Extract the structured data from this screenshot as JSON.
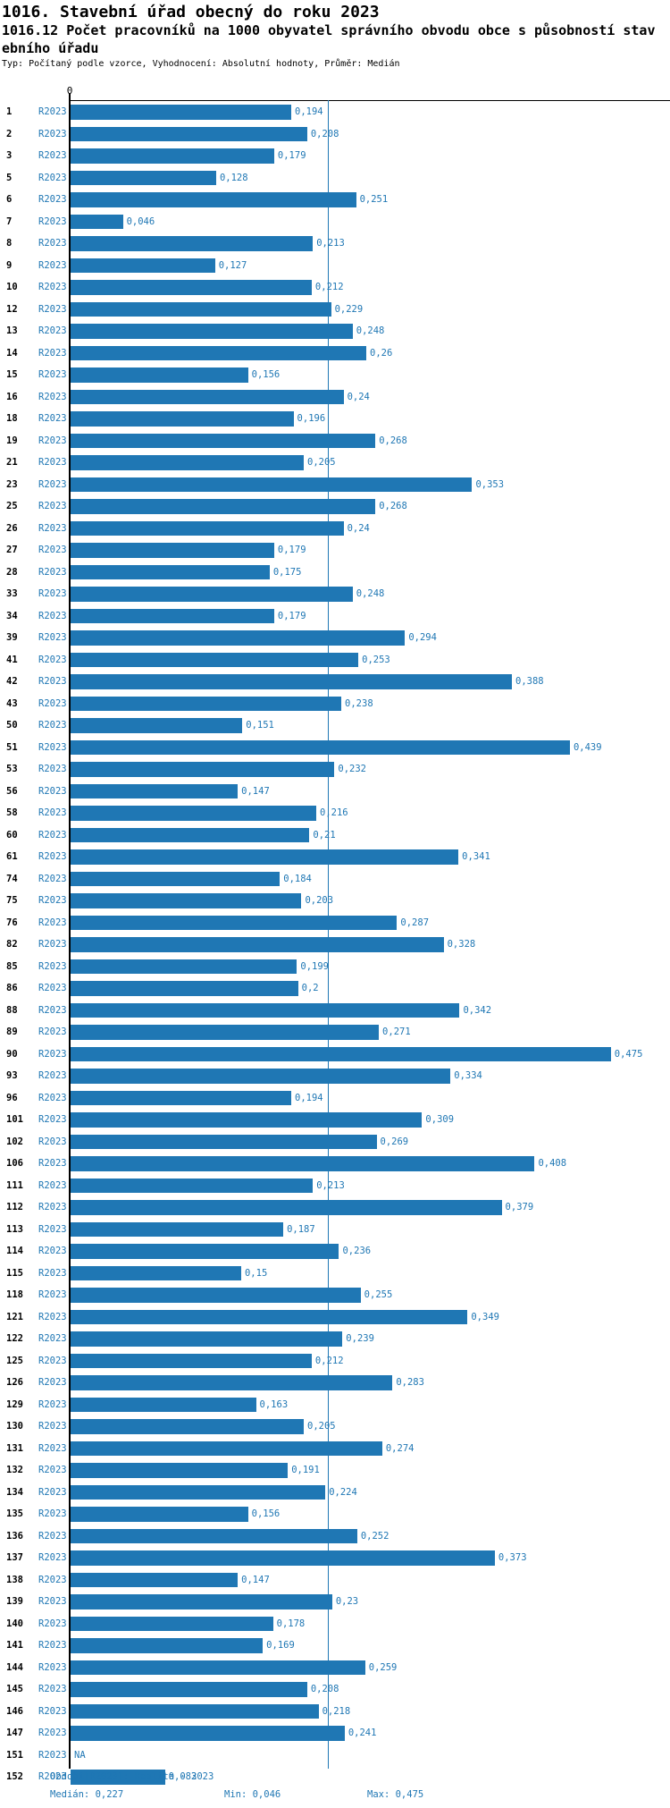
{
  "header": {
    "title": "1016. Stavební úřad obecný do roku 2023",
    "subtitle_line1": "1016.12 Počet pracovníků na 1000 obyvatel správního obvodu obce s působností stav",
    "subtitle_line2": "ebního úřadu",
    "meta": "Typ: Počítaný podle vzorce, Vyhodnocení: Absolutní hodnoty, Průměr: Medián"
  },
  "chart_data": {
    "type": "bar",
    "orientation": "horizontal",
    "series_label": "R2023",
    "axis": {
      "zero_label": "0",
      "max": 0.527,
      "median_value": 0.227,
      "grid": false
    },
    "colors": {
      "bar": "#1f77b4",
      "median_line": "#1f77b4",
      "axis": "#000000"
    },
    "rows": [
      {
        "id": "1",
        "value": 0.194,
        "label": "0,194"
      },
      {
        "id": "2",
        "value": 0.208,
        "label": "0,208"
      },
      {
        "id": "3",
        "value": 0.179,
        "label": "0,179"
      },
      {
        "id": "5",
        "value": 0.128,
        "label": "0,128"
      },
      {
        "id": "6",
        "value": 0.251,
        "label": "0,251"
      },
      {
        "id": "7",
        "value": 0.046,
        "label": "0,046"
      },
      {
        "id": "8",
        "value": 0.213,
        "label": "0,213"
      },
      {
        "id": "9",
        "value": 0.127,
        "label": "0,127"
      },
      {
        "id": "10",
        "value": 0.212,
        "label": "0,212"
      },
      {
        "id": "12",
        "value": 0.229,
        "label": "0,229"
      },
      {
        "id": "13",
        "value": 0.248,
        "label": "0,248"
      },
      {
        "id": "14",
        "value": 0.26,
        "label": "0,26"
      },
      {
        "id": "15",
        "value": 0.156,
        "label": "0,156"
      },
      {
        "id": "16",
        "value": 0.24,
        "label": "0,24"
      },
      {
        "id": "18",
        "value": 0.196,
        "label": "0,196"
      },
      {
        "id": "19",
        "value": 0.268,
        "label": "0,268"
      },
      {
        "id": "21",
        "value": 0.205,
        "label": "0,205"
      },
      {
        "id": "23",
        "value": 0.353,
        "label": "0,353"
      },
      {
        "id": "25",
        "value": 0.268,
        "label": "0,268"
      },
      {
        "id": "26",
        "value": 0.24,
        "label": "0,24"
      },
      {
        "id": "27",
        "value": 0.179,
        "label": "0,179"
      },
      {
        "id": "28",
        "value": 0.175,
        "label": "0,175"
      },
      {
        "id": "33",
        "value": 0.248,
        "label": "0,248"
      },
      {
        "id": "34",
        "value": 0.179,
        "label": "0,179"
      },
      {
        "id": "39",
        "value": 0.294,
        "label": "0,294"
      },
      {
        "id": "41",
        "value": 0.253,
        "label": "0,253"
      },
      {
        "id": "42",
        "value": 0.388,
        "label": "0,388"
      },
      {
        "id": "43",
        "value": 0.238,
        "label": "0,238"
      },
      {
        "id": "50",
        "value": 0.151,
        "label": "0,151"
      },
      {
        "id": "51",
        "value": 0.439,
        "label": "0,439"
      },
      {
        "id": "53",
        "value": 0.232,
        "label": "0,232"
      },
      {
        "id": "56",
        "value": 0.147,
        "label": "0,147"
      },
      {
        "id": "58",
        "value": 0.216,
        "label": "0,216"
      },
      {
        "id": "60",
        "value": 0.21,
        "label": "0,21"
      },
      {
        "id": "61",
        "value": 0.341,
        "label": "0,341"
      },
      {
        "id": "74",
        "value": 0.184,
        "label": "0,184"
      },
      {
        "id": "75",
        "value": 0.203,
        "label": "0,203"
      },
      {
        "id": "76",
        "value": 0.287,
        "label": "0,287"
      },
      {
        "id": "82",
        "value": 0.328,
        "label": "0,328"
      },
      {
        "id": "85",
        "value": 0.199,
        "label": "0,199"
      },
      {
        "id": "86",
        "value": 0.2,
        "label": "0,2"
      },
      {
        "id": "88",
        "value": 0.342,
        "label": "0,342"
      },
      {
        "id": "89",
        "value": 0.271,
        "label": "0,271"
      },
      {
        "id": "90",
        "value": 0.475,
        "label": "0,475"
      },
      {
        "id": "93",
        "value": 0.334,
        "label": "0,334"
      },
      {
        "id": "96",
        "value": 0.194,
        "label": "0,194"
      },
      {
        "id": "101",
        "value": 0.309,
        "label": "0,309"
      },
      {
        "id": "102",
        "value": 0.269,
        "label": "0,269"
      },
      {
        "id": "106",
        "value": 0.408,
        "label": "0,408"
      },
      {
        "id": "111",
        "value": 0.213,
        "label": "0,213"
      },
      {
        "id": "112",
        "value": 0.379,
        "label": "0,379"
      },
      {
        "id": "113",
        "value": 0.187,
        "label": "0,187"
      },
      {
        "id": "114",
        "value": 0.236,
        "label": "0,236"
      },
      {
        "id": "115",
        "value": 0.15,
        "label": "0,15"
      },
      {
        "id": "118",
        "value": 0.255,
        "label": "0,255"
      },
      {
        "id": "121",
        "value": 0.349,
        "label": "0,349"
      },
      {
        "id": "122",
        "value": 0.239,
        "label": "0,239"
      },
      {
        "id": "125",
        "value": 0.212,
        "label": "0,212"
      },
      {
        "id": "126",
        "value": 0.283,
        "label": "0,283"
      },
      {
        "id": "129",
        "value": 0.163,
        "label": "0,163"
      },
      {
        "id": "130",
        "value": 0.205,
        "label": "0,205"
      },
      {
        "id": "131",
        "value": 0.274,
        "label": "0,274"
      },
      {
        "id": "132",
        "value": 0.191,
        "label": "0,191"
      },
      {
        "id": "134",
        "value": 0.224,
        "label": "0,224"
      },
      {
        "id": "135",
        "value": 0.156,
        "label": "0,156"
      },
      {
        "id": "136",
        "value": 0.252,
        "label": "0,252"
      },
      {
        "id": "137",
        "value": 0.373,
        "label": "0,373"
      },
      {
        "id": "138",
        "value": 0.147,
        "label": "0,147"
      },
      {
        "id": "139",
        "value": 0.23,
        "label": "0,23"
      },
      {
        "id": "140",
        "value": 0.178,
        "label": "0,178"
      },
      {
        "id": "141",
        "value": 0.169,
        "label": "0,169"
      },
      {
        "id": "144",
        "value": 0.259,
        "label": "0,259"
      },
      {
        "id": "145",
        "value": 0.208,
        "label": "0,208"
      },
      {
        "id": "146",
        "value": 0.218,
        "label": "0,218"
      },
      {
        "id": "147",
        "value": 0.241,
        "label": "0,241"
      },
      {
        "id": "151",
        "value": null,
        "label": "NA"
      },
      {
        "id": "152",
        "value": 0.083,
        "label": "0,083"
      }
    ]
  },
  "footer": {
    "period": "Období[R2023]: Realita - 2023",
    "median": "Medián: 0,227",
    "min": "Min: 0,046",
    "max": "Max: 0,475"
  }
}
